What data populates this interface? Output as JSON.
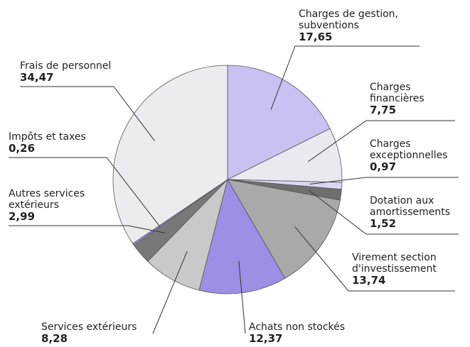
{
  "chart_data": {
    "type": "pie",
    "categories": [
      "Charges de gestion,\nsubventions",
      "Charges\nfinancières",
      "Charges\nexceptionnelles",
      "Dotation aux\namortissements",
      "Virement section\nd'investissement",
      "Achats non stockés",
      "Services extérieurs",
      "Autres services\nextérieurs",
      "Impôts et taxes",
      "Frais de personnel"
    ],
    "values": [
      17.65,
      7.75,
      0.97,
      1.52,
      13.74,
      12.37,
      8.28,
      2.99,
      0.26,
      34.47
    ],
    "value_labels": [
      "17,65",
      "7,75",
      "0,97",
      "1,52",
      "13,74",
      "12,37",
      "8,28",
      "2,99",
      "0,26",
      "34,47"
    ],
    "colors": [
      "#c9c1f2",
      "#e9e9f0",
      "#d9d7f2",
      "#6f6f6f",
      "#a9a9a9",
      "#9b8fe6",
      "#c9c9c9",
      "#787878",
      "#a392e2",
      "#ececf0"
    ]
  }
}
